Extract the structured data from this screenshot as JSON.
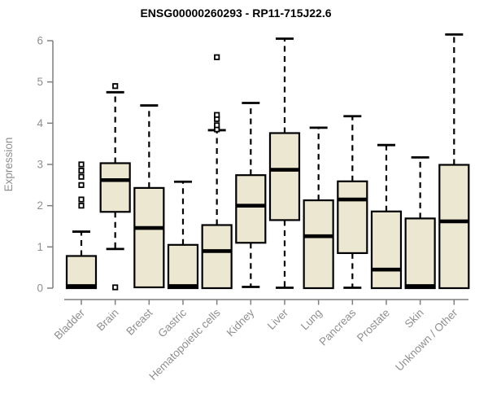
{
  "chart": {
    "title": "ENSG00000260293 - RP11-715J22.6",
    "ylabel": "Expression"
  },
  "chart_data": {
    "type": "boxplot",
    "title": "ENSG00000260293 - RP11-715J22.6",
    "xlabel": "",
    "ylabel": "Expression",
    "ylim": [
      0,
      6
    ],
    "yticks": [
      0,
      1,
      2,
      3,
      4,
      5,
      6
    ],
    "grid": false,
    "legend": false,
    "categories": [
      "Bladder",
      "Brain",
      "Breast",
      "Gastric",
      "Hematopoietic cells",
      "Kidney",
      "Liver",
      "Lung",
      "Pancreas",
      "Prostate",
      "Skin",
      "Unknown / Other"
    ],
    "series": [
      {
        "name": "Bladder",
        "whisker_low": 0,
        "q1": 0,
        "median": 0.05,
        "q3": 0.78,
        "whisker_high": 1.37,
        "outliers": [
          2.0,
          2.15,
          2.5,
          2.7,
          2.85,
          3.0
        ]
      },
      {
        "name": "Brain",
        "whisker_low": 0.95,
        "q1": 1.85,
        "median": 2.62,
        "q3": 3.03,
        "whisker_high": 4.75,
        "outliers": [
          0.02,
          4.9
        ]
      },
      {
        "name": "Breast",
        "whisker_low": 0.02,
        "q1": 0.02,
        "median": 1.46,
        "q3": 2.43,
        "whisker_high": 4.43,
        "outliers": []
      },
      {
        "name": "Gastric",
        "whisker_low": 0,
        "q1": 0,
        "median": 0.05,
        "q3": 1.05,
        "whisker_high": 2.58,
        "outliers": []
      },
      {
        "name": "Hematopoietic cells",
        "whisker_low": 0,
        "q1": 0,
        "median": 0.9,
        "q3": 1.53,
        "whisker_high": 3.83,
        "outliers": [
          3.85,
          3.95,
          4.1,
          4.2,
          5.6
        ]
      },
      {
        "name": "Kidney",
        "whisker_low": 0.03,
        "q1": 1.1,
        "median": 2.0,
        "q3": 2.74,
        "whisker_high": 4.49,
        "outliers": []
      },
      {
        "name": "Liver",
        "whisker_low": 0.01,
        "q1": 1.65,
        "median": 2.87,
        "q3": 3.76,
        "whisker_high": 6.05,
        "outliers": []
      },
      {
        "name": "Lung",
        "whisker_low": 0,
        "q1": 0,
        "median": 1.26,
        "q3": 2.13,
        "whisker_high": 3.89,
        "outliers": []
      },
      {
        "name": "Pancreas",
        "whisker_low": 0.01,
        "q1": 0.85,
        "median": 2.15,
        "q3": 2.59,
        "whisker_high": 4.17,
        "outliers": []
      },
      {
        "name": "Prostate",
        "whisker_low": 0,
        "q1": 0,
        "median": 0.45,
        "q3": 1.86,
        "whisker_high": 3.47,
        "outliers": []
      },
      {
        "name": "Skin",
        "whisker_low": 0,
        "q1": 0,
        "median": 0.05,
        "q3": 1.69,
        "whisker_high": 3.17,
        "outliers": []
      },
      {
        "name": "Unknown / Other",
        "whisker_low": 0,
        "q1": 0,
        "median": 1.62,
        "q3": 2.99,
        "whisker_high": 6.15,
        "outliers": []
      }
    ],
    "colors": {
      "box_fill": "#ece7d0",
      "box_border": "#000000",
      "median": "#000000",
      "whisker": "#000000",
      "outlier_stroke": "#000000",
      "axis_line": "#7f7f7f",
      "axis_text": "#8f8f8f",
      "title": "#000000",
      "background": "#ffffff"
    }
  }
}
